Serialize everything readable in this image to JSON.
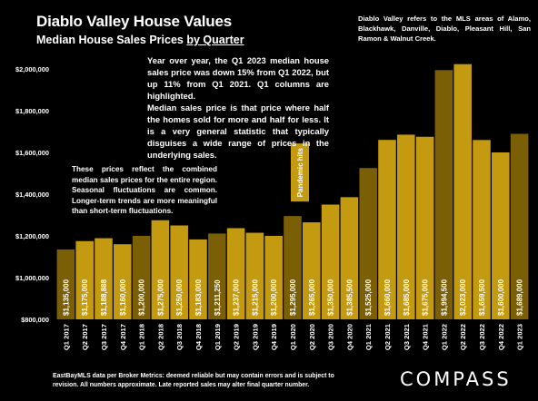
{
  "title": "Diablo Valley House Values",
  "subtitle_prefix": "Median House Sales Prices ",
  "subtitle_underlined": "by Quarter",
  "notes": {
    "region": "Diablo Valley refers to the MLS areas of Alamo, Blackhawk, Danville, Diablo, Pleasant Hill, San Ramon & Walnut Creek.",
    "yoy": "Year over year, the Q1 2023 median house sales price was down 15% from Q1 2022, but up 11% from Q1 2021. Q1 columns are highlighted.",
    "median": "Median sales price is that price where half the homes sold for more and half for less. It is a very general statistic that typically disguises a wide range of prices in the underlying sales.",
    "prices": "These prices reflect the combined median sales prices for the entire region. Seasonal fluctuations are common. Longer-term trends are more meaningful than short-term fluctuations."
  },
  "footer": "EastBayMLS data per Broker Metrics: deemed reliable but may contain errors and is subject to revision. All numbers approximate. Late reported sales may alter final quarter number.",
  "logo": "COMPASS",
  "colors": {
    "background": "#000000",
    "bar": "#c49a10",
    "bar_q1": "#7a5f06",
    "text": "#ffffff"
  },
  "chart_data": {
    "type": "bar",
    "categories": [
      "Q1 2017",
      "Q2 2017",
      "Q3 2017",
      "Q4 2017",
      "Q1 2018",
      "Q2 2018",
      "Q3 2018",
      "Q4 2018",
      "Q1 2019",
      "Q2 2019",
      "Q3 2019",
      "Q4 2019",
      "Q1 2020",
      "Q2 2020",
      "Q3 2020",
      "Q4 2020",
      "Q1 2021",
      "Q2 2021",
      "Q3 2021",
      "Q4 2021",
      "Q1 2022",
      "Q2 2022",
      "Q3 2022",
      "Q4 2022",
      "Q1 2023"
    ],
    "values": [
      1135000,
      1175000,
      1188888,
      1160000,
      1200000,
      1275000,
      1250000,
      1183000,
      1211250,
      1237000,
      1215000,
      1200000,
      1295000,
      1265000,
      1350000,
      1385500,
      1525000,
      1660000,
      1685000,
      1675000,
      1994500,
      2023000,
      1659500,
      1600000,
      1689000
    ],
    "value_labels": [
      "$1,135,000",
      "$1,175,000",
      "$1,188,888",
      "$1,160,000",
      "$1,200,000",
      "$1,275,000",
      "$1,250,000",
      "$1,183,000",
      "$1,211,250",
      "$1,237,000",
      "$1,215,000",
      "$1,200,000",
      "$1,295,000",
      "$1,265,000",
      "$1,350,000",
      "$1,385,500",
      "$1,525,000",
      "$1,660,000",
      "$1,685,000",
      "$1,675,000",
      "$1,994,500",
      "$2,023,000",
      "$1,659,500",
      "$1,600,000",
      "$1,689,000"
    ],
    "highlighted": [
      true,
      false,
      false,
      false,
      true,
      false,
      false,
      false,
      true,
      false,
      false,
      false,
      true,
      false,
      false,
      false,
      true,
      false,
      false,
      false,
      true,
      false,
      false,
      false,
      true
    ],
    "y_ticks": [
      "$800,000",
      "$1,000,000",
      "$1,200,000",
      "$1,400,000",
      "$1,600,000",
      "$1,800,000",
      "$2,000,000"
    ],
    "y_tick_values": [
      800000,
      1000000,
      1200000,
      1400000,
      1600000,
      1800000,
      2000000
    ],
    "ylim": [
      800000,
      2100000
    ],
    "annotation": {
      "category_index": 12,
      "text": "Pandemic hits"
    },
    "grid": false
  }
}
